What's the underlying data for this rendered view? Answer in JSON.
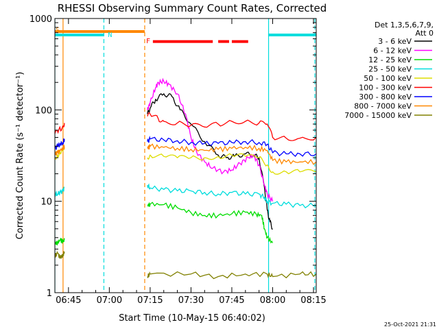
{
  "chart_data": {
    "type": "line",
    "title": "RHESSI Observing Summary Count Rates, Corrected",
    "xlabel": "Start Time (10-May-15 06:40:02)",
    "ylabel": "Corrected Count Rate (s⁻¹ detector⁻¹)",
    "yscale": "log",
    "ylim": [
      1,
      1000
    ],
    "xlim_minutes_after_0640": [
      0,
      96
    ],
    "x_ticks": [
      {
        "label": "06:45",
        "t": 5
      },
      {
        "label": "07:00",
        "t": 20
      },
      {
        "label": "07:15",
        "t": 35
      },
      {
        "label": "07:30",
        "t": 50
      },
      {
        "label": "07:45",
        "t": 65
      },
      {
        "label": "08:00",
        "t": 80
      },
      {
        "label": "08:15",
        "t": 95
      }
    ],
    "y_ticks": [
      {
        "label": "1",
        "v": 1
      },
      {
        "label": "10",
        "v": 10
      },
      {
        "label": "100",
        "v": 100
      },
      {
        "label": "1000",
        "v": 1000
      }
    ],
    "legend_header": [
      "Det 1,3,5,6,7,9,",
      "Att 0"
    ],
    "legend_position": "right",
    "series": [
      {
        "name": "3 - 6 keV",
        "color": "#000000",
        "x": [
          0,
          2,
          3.5,
          34,
          35,
          37,
          40,
          43,
          46,
          50,
          55,
          60,
          63,
          66,
          70,
          73,
          75,
          77,
          78,
          79,
          80
        ],
        "y": [
          null,
          null,
          null,
          90,
          105,
          130,
          150,
          140,
          100,
          70,
          45,
          32,
          30,
          31,
          33,
          32,
          30,
          14,
          8,
          6,
          5
        ]
      },
      {
        "name": "6 - 12 keV",
        "color": "#ff00ff",
        "x": [
          0,
          2,
          3.5,
          34,
          35,
          37,
          38,
          40,
          42,
          45,
          48,
          50,
          52,
          55,
          58,
          62,
          65,
          68,
          71,
          73,
          75,
          77,
          78,
          80
        ],
        "y": [
          null,
          null,
          null,
          100,
          120,
          175,
          200,
          205,
          190,
          150,
          90,
          50,
          35,
          27,
          23,
          21,
          22,
          26,
          30,
          32,
          25,
          15,
          12,
          10
        ]
      },
      {
        "name": "12 - 25 keV",
        "color": "#00dd00",
        "x": [
          0,
          1,
          2,
          3,
          3.5,
          34,
          35,
          40,
          45,
          50,
          55,
          60,
          65,
          70,
          74,
          76,
          77,
          78,
          80
        ],
        "y": [
          3.5,
          3.5,
          3.8,
          3.6,
          3.8,
          9,
          9.3,
          9.2,
          8.5,
          7.5,
          7,
          7,
          7.3,
          7.6,
          7.2,
          7,
          5,
          4,
          3.5
        ]
      },
      {
        "name": "25 - 50 keV",
        "color": "#00dddd",
        "x": [
          0,
          1,
          2,
          3,
          3.5,
          34,
          35,
          40,
          45,
          50,
          55,
          60,
          65,
          70,
          75,
          77,
          78,
          80,
          85,
          90,
          96
        ],
        "y": [
          12,
          12,
          12.5,
          13,
          14,
          15,
          14,
          13.5,
          13,
          13,
          12.5,
          12,
          12.5,
          12,
          12,
          11,
          10,
          9.5,
          9.3,
          9,
          9
        ]
      },
      {
        "name": "50 - 100 keV",
        "color": "#dddd00",
        "x": [
          0,
          1,
          2,
          3,
          3.5,
          34,
          35,
          40,
          45,
          50,
          55,
          60,
          65,
          70,
          75,
          78,
          80,
          85,
          90,
          96
        ],
        "y": [
          30,
          32,
          33,
          35,
          38,
          30,
          32,
          31,
          30,
          30,
          30,
          31,
          32,
          31,
          30,
          25,
          21,
          21,
          21,
          21
        ]
      },
      {
        "name": "100 - 300 keV",
        "color": "#ff0000",
        "x": [
          0,
          1,
          2,
          3,
          3.5,
          34,
          35,
          38,
          40,
          45,
          50,
          55,
          60,
          65,
          70,
          75,
          78,
          80,
          85,
          90,
          96
        ],
        "y": [
          55,
          58,
          62,
          66,
          72,
          85,
          90,
          80,
          75,
          72,
          68,
          65,
          70,
          75,
          75,
          72,
          70,
          50,
          49,
          49,
          50
        ]
      },
      {
        "name": "300 - 800 keV",
        "color": "#0000ff",
        "x": [
          0,
          1,
          2,
          3,
          3.5,
          34,
          35,
          40,
          45,
          50,
          55,
          60,
          65,
          70,
          75,
          78,
          80,
          85,
          90,
          96
        ],
        "y": [
          38,
          40,
          42,
          44,
          48,
          45,
          48,
          47,
          46,
          44,
          43,
          43,
          44,
          45,
          44,
          42,
          34,
          33,
          33,
          33
        ]
      },
      {
        "name": "800 - 7000 keV",
        "color": "#ff8800",
        "x": [
          0,
          1,
          2,
          3,
          3.5,
          34,
          35,
          40,
          45,
          50,
          55,
          60,
          65,
          70,
          75,
          78,
          80,
          85,
          90,
          96
        ],
        "y": [
          33,
          34,
          36,
          38,
          40,
          38,
          40,
          39,
          38,
          37,
          36,
          37,
          38,
          39,
          38,
          36,
          28,
          27,
          27,
          27
        ]
      },
      {
        "name": "7000 - 15000 keV",
        "color": "#808000",
        "x": [
          0,
          1,
          2,
          3,
          3.5,
          34,
          35,
          50,
          60,
          70,
          78,
          80,
          90,
          96
        ],
        "y": [
          2.5,
          2.7,
          2.4,
          2.6,
          2.8,
          1.5,
          1.6,
          1.6,
          1.5,
          1.6,
          1.6,
          1.5,
          1.6,
          1.6
        ]
      }
    ],
    "attenuator_lines": [
      {
        "t": 3,
        "color": "#ff8800",
        "style": "solid"
      },
      {
        "t": 33,
        "color": "#ff8800",
        "style": "dashed"
      }
    ],
    "night_lines": [
      {
        "t": 0,
        "color": "#00dddd",
        "style": "solid"
      },
      {
        "t": 18,
        "color": "#00dddd",
        "style": "dashed"
      },
      {
        "t": 78.5,
        "color": "#00dddd",
        "style": "solid"
      },
      {
        "t": 95.5,
        "color": "#00dddd",
        "style": "dashed"
      }
    ],
    "bars": [
      {
        "label": "",
        "color": "#ff8800",
        "t0": 0,
        "t1": 33,
        "v": 720
      },
      {
        "label": "",
        "color": "#00dddd",
        "t0": 0,
        "t1": 18,
        "v": 660
      },
      {
        "label": "",
        "color": "#00dddd",
        "t0": 78.5,
        "t1": 96,
        "v": 660
      },
      {
        "label": "",
        "color": "#ff0000",
        "t0": 36,
        "t1": 58,
        "v": 560
      },
      {
        "label": "",
        "color": "#ff0000",
        "t0": 60,
        "t1": 64,
        "v": 560
      },
      {
        "label": "",
        "color": "#ff0000",
        "t0": 65,
        "t1": 71,
        "v": 560
      }
    ],
    "annotations": [
      {
        "text": "N",
        "color": "#00dddd",
        "t": 19.5,
        "v": 670
      },
      {
        "text": "F",
        "color": "#ff0000",
        "t": 33.5,
        "v": 575
      },
      {
        "text": "S",
        "color": "#ff8800",
        "t": 0.3,
        "v": 760
      }
    ]
  },
  "footer": {
    "timestamp": "25-Oct-2021 21:31"
  }
}
